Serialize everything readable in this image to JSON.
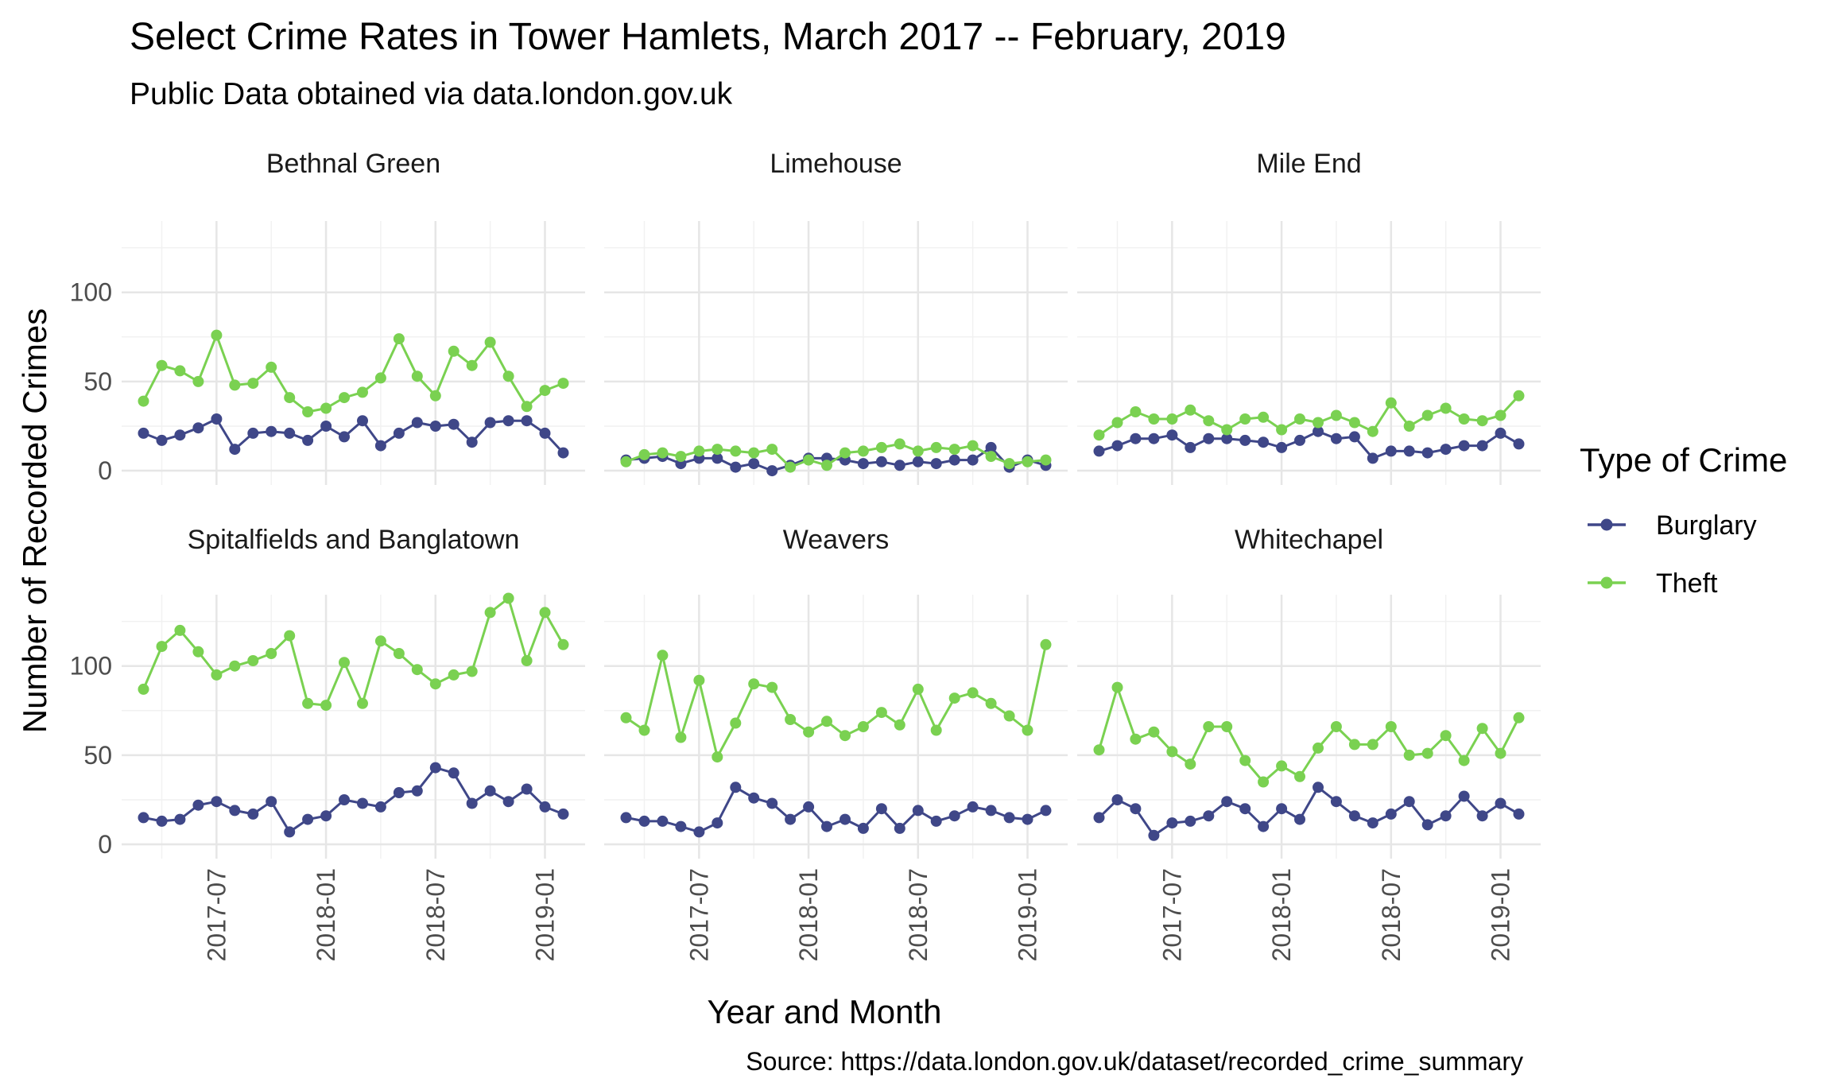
{
  "chart_data": {
    "type": "line",
    "title": "Select Crime Rates in Tower Hamlets, March 2017 -- February, 2019",
    "subtitle": "Public Data obtained via data.london.gov.uk",
    "xlabel": "Year and Month",
    "ylabel": "Number of Recorded Crimes",
    "caption": "Source: https://data.london.gov.uk/dataset/recorded_crime_summary",
    "ylim": [
      0,
      140
    ],
    "y_ticks": [
      0,
      50,
      100
    ],
    "x_ticks": [
      "2017-07",
      "2018-01",
      "2018-07",
      "2019-01"
    ],
    "x_range": [
      "2017-03",
      "2019-02"
    ],
    "grid": true,
    "legend": {
      "title": "Type of Crime",
      "position": "right",
      "items": [
        {
          "name": "Burglary",
          "color": "#3f4788"
        },
        {
          "name": "Theft",
          "color": "#7ad151"
        }
      ]
    },
    "x": [
      "2017-03",
      "2017-04",
      "2017-05",
      "2017-06",
      "2017-07",
      "2017-08",
      "2017-09",
      "2017-10",
      "2017-11",
      "2017-12",
      "2018-01",
      "2018-02",
      "2018-03",
      "2018-04",
      "2018-05",
      "2018-06",
      "2018-07",
      "2018-08",
      "2018-09",
      "2018-10",
      "2018-11",
      "2018-12",
      "2019-01",
      "2019-02"
    ],
    "facets": [
      {
        "name": "Bethnal Green",
        "series": [
          {
            "name": "Burglary",
            "values": [
              21,
              17,
              20,
              24,
              29,
              12,
              21,
              22,
              21,
              17,
              25,
              19,
              28,
              14,
              21,
              27,
              25,
              26,
              16,
              27,
              28,
              28,
              21,
              10
            ]
          },
          {
            "name": "Theft",
            "values": [
              39,
              59,
              56,
              50,
              76,
              48,
              49,
              58,
              41,
              33,
              35,
              41,
              44,
              52,
              74,
              53,
              42,
              67,
              59,
              72,
              53,
              36,
              45,
              49
            ]
          }
        ]
      },
      {
        "name": "Limehouse",
        "series": [
          {
            "name": "Burglary",
            "values": [
              6,
              7,
              8,
              4,
              7,
              7,
              2,
              4,
              0,
              3,
              7,
              7,
              6,
              4,
              5,
              3,
              5,
              4,
              6,
              6,
              13,
              2,
              6,
              3
            ]
          },
          {
            "name": "Theft",
            "values": [
              5,
              9,
              10,
              8,
              11,
              12,
              11,
              10,
              12,
              2,
              6,
              3,
              10,
              11,
              13,
              15,
              11,
              13,
              12,
              14,
              8,
              4,
              5,
              6
            ]
          }
        ]
      },
      {
        "name": "Mile End",
        "series": [
          {
            "name": "Burglary",
            "values": [
              11,
              14,
              18,
              18,
              20,
              13,
              18,
              18,
              17,
              16,
              13,
              17,
              22,
              18,
              19,
              7,
              11,
              11,
              10,
              12,
              14,
              14,
              21,
              15
            ]
          },
          {
            "name": "Theft",
            "values": [
              20,
              27,
              33,
              29,
              29,
              34,
              28,
              23,
              29,
              30,
              23,
              29,
              27,
              31,
              27,
              22,
              38,
              25,
              31,
              35,
              29,
              28,
              31,
              42
            ]
          }
        ]
      },
      {
        "name": "Spitalfields and Banglatown",
        "series": [
          {
            "name": "Burglary",
            "values": [
              15,
              13,
              14,
              22,
              24,
              19,
              17,
              24,
              7,
              14,
              16,
              25,
              23,
              21,
              29,
              30,
              43,
              40,
              23,
              30,
              24,
              31,
              21,
              17
            ]
          },
          {
            "name": "Theft",
            "values": [
              87,
              111,
              120,
              108,
              95,
              100,
              103,
              107,
              117,
              79,
              78,
              102,
              79,
              114,
              107,
              98,
              90,
              95,
              97,
              130,
              138,
              103,
              130,
              112
            ]
          }
        ]
      },
      {
        "name": "Weavers",
        "series": [
          {
            "name": "Burglary",
            "values": [
              15,
              13,
              13,
              10,
              7,
              12,
              32,
              26,
              23,
              14,
              21,
              10,
              14,
              9,
              20,
              9,
              19,
              13,
              16,
              21,
              19,
              15,
              14,
              19
            ]
          },
          {
            "name": "Theft",
            "values": [
              71,
              64,
              106,
              60,
              92,
              49,
              68,
              90,
              88,
              70,
              63,
              69,
              61,
              66,
              74,
              67,
              87,
              64,
              82,
              85,
              79,
              72,
              64,
              112
            ]
          }
        ]
      },
      {
        "name": "Whitechapel",
        "series": [
          {
            "name": "Burglary",
            "values": [
              15,
              25,
              20,
              5,
              12,
              13,
              16,
              24,
              20,
              10,
              20,
              14,
              32,
              24,
              16,
              12,
              17,
              24,
              11,
              16,
              27,
              16,
              23,
              17
            ]
          },
          {
            "name": "Theft",
            "values": [
              53,
              88,
              59,
              63,
              52,
              45,
              66,
              66,
              47,
              35,
              44,
              38,
              54,
              66,
              56,
              56,
              66,
              50,
              51,
              61,
              47,
              65,
              51,
              71
            ]
          }
        ]
      }
    ]
  }
}
